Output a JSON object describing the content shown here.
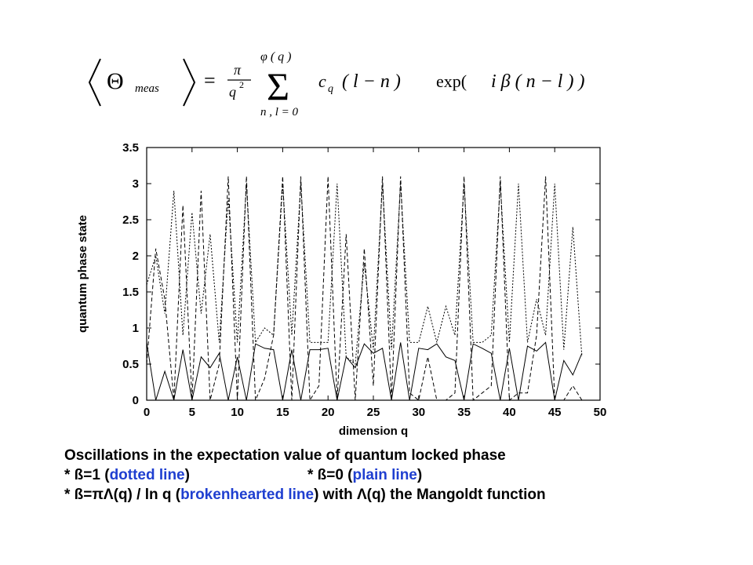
{
  "formula": {
    "lhs_symbol": "Θ",
    "lhs_subscript": "meas",
    "equals": "=",
    "frac_num": "π",
    "frac_den": "q",
    "frac_den_exp": "2",
    "sum_upper": "φ ( q )",
    "sum_symbol": "Σ",
    "sum_lower": "n , l = 0",
    "term_c": "c",
    "term_c_sub": "q",
    "term_args": "( l − n )",
    "term_exp": "exp(",
    "term_exp_body": "i β ( n − l ) )"
  },
  "caption": {
    "line1": "Oscillations in the expectation value of quantum locked phase",
    "line2_a": "* ß=1 (",
    "line2_b": "dotted line",
    "line2_c": ")",
    "line2_d": "* ß=0 (",
    "line2_e": "plain line",
    "line2_f": ")",
    "line3_a": "* ß=πΛ(q) / ln q (",
    "line3_b": "brokenhearted line",
    "line3_c": ") with Λ(q) the Mangoldt function"
  },
  "colors": {
    "caption_highlight": "#1f3fd0",
    "lines": "#000000"
  },
  "chart_data": {
    "type": "line",
    "xlabel": "dimension q",
    "ylabel": "quantum phase state",
    "xlim": [
      0,
      50
    ],
    "ylim": [
      0,
      3.5
    ],
    "xticks": [
      0,
      5,
      10,
      15,
      20,
      25,
      30,
      35,
      40,
      45,
      50
    ],
    "yticks": [
      0,
      0.5,
      1,
      1.5,
      2,
      2.5,
      3,
      3.5
    ],
    "grid": false,
    "x": [
      0,
      1,
      2,
      3,
      4,
      5,
      6,
      7,
      8,
      9,
      10,
      11,
      12,
      13,
      14,
      15,
      16,
      17,
      18,
      19,
      20,
      21,
      22,
      23,
      24,
      25,
      26,
      27,
      28,
      29,
      30,
      31,
      32,
      33,
      34,
      35,
      36,
      37,
      38,
      39,
      40,
      41,
      42,
      43,
      44,
      45,
      46,
      47,
      48
    ],
    "series": [
      {
        "style": "dotted",
        "values": [
          1.6,
          2.0,
          1.2,
          2.9,
          0.9,
          2.6,
          1.2,
          2.3,
          0.8,
          2.8,
          0.8,
          3.0,
          0.8,
          1.0,
          0.9,
          3.0,
          0.9,
          3.0,
          0.8,
          0.8,
          0.8,
          3.0,
          0.6,
          0.5,
          1.9,
          0.7,
          3.0,
          0.7,
          3.0,
          0.8,
          0.8,
          1.3,
          0.8,
          1.3,
          0.9,
          3.0,
          0.8,
          0.8,
          0.9,
          3.0,
          0.8,
          3.0,
          0.8,
          1.4,
          0.9,
          3.0,
          0.7,
          2.4,
          0.6
        ]
      },
      {
        "style": "plain",
        "values": [
          0.8,
          0.0,
          0.4,
          0.0,
          0.7,
          0.0,
          0.6,
          0.45,
          0.65,
          0.0,
          0.6,
          0.0,
          0.78,
          0.72,
          0.7,
          0.0,
          0.7,
          0.0,
          0.7,
          0.7,
          0.72,
          0.0,
          0.6,
          0.45,
          0.78,
          0.65,
          0.72,
          0.0,
          0.8,
          0.0,
          0.72,
          0.7,
          0.78,
          0.6,
          0.55,
          0.0,
          0.78,
          0.72,
          0.65,
          0.0,
          0.72,
          0.0,
          0.75,
          0.68,
          0.8,
          0.0,
          0.55,
          0.35,
          0.65
        ]
      },
      {
        "style": "broken",
        "values": [
          0.5,
          2.1,
          1.4,
          0.0,
          2.7,
          0.0,
          2.9,
          0.0,
          0.5,
          3.1,
          0.0,
          3.1,
          0.0,
          0.3,
          0.9,
          3.1,
          0.0,
          3.1,
          0.0,
          0.2,
          3.1,
          0.0,
          2.3,
          0.0,
          2.1,
          0.2,
          3.1,
          0.0,
          3.1,
          0.1,
          0.0,
          0.6,
          0.0,
          0.0,
          0.1,
          3.1,
          0.0,
          0.1,
          0.2,
          3.1,
          0.0,
          0.1,
          0.1,
          0.9,
          3.1,
          0.0,
          0.0,
          0.2,
          0.0
        ]
      }
    ]
  }
}
